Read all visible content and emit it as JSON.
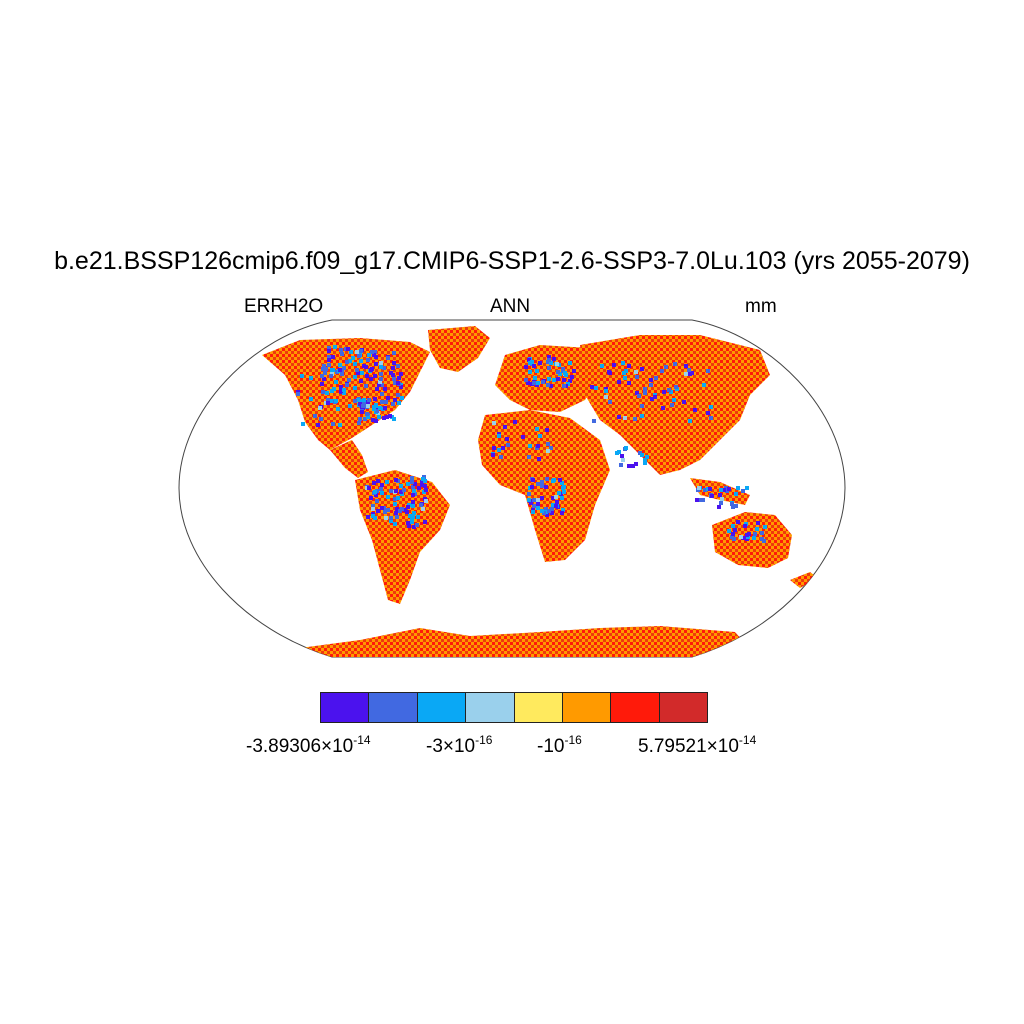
{
  "title": "b.e21.BSSP126cmip6.f09_g17.CMIP6-SSP1-2.6-SSP3-7.0Lu.103 (yrs 2055-2079)",
  "subtitles": {
    "left": "ERRH2O",
    "center": "ANN",
    "right": "mm"
  },
  "colorbar": {
    "colors": [
      "#4b12ee",
      "#4169e1",
      "#0aa8f5",
      "#9ad0ec",
      "#ffea5e",
      "#ff9a00",
      "#ff1a0a",
      "#d22a2a"
    ],
    "labels": [
      {
        "base": "-3.89306×10",
        "exp": "-14"
      },
      {
        "base": "-3×10",
        "exp": "-16"
      },
      {
        "base": "-10",
        "exp": "-16"
      },
      {
        "base": "5.79521×10",
        "exp": "-14"
      }
    ]
  },
  "map": {
    "projection": "Robinson",
    "variable": "ERRH2O",
    "dominant_colors": [
      "#ff9a00",
      "#ff1a0a",
      "#d22a2a"
    ],
    "sparse_colors": [
      "#4b12ee",
      "#4169e1",
      "#0aa8f5",
      "#9ad0ec",
      "#ffea5e"
    ]
  }
}
